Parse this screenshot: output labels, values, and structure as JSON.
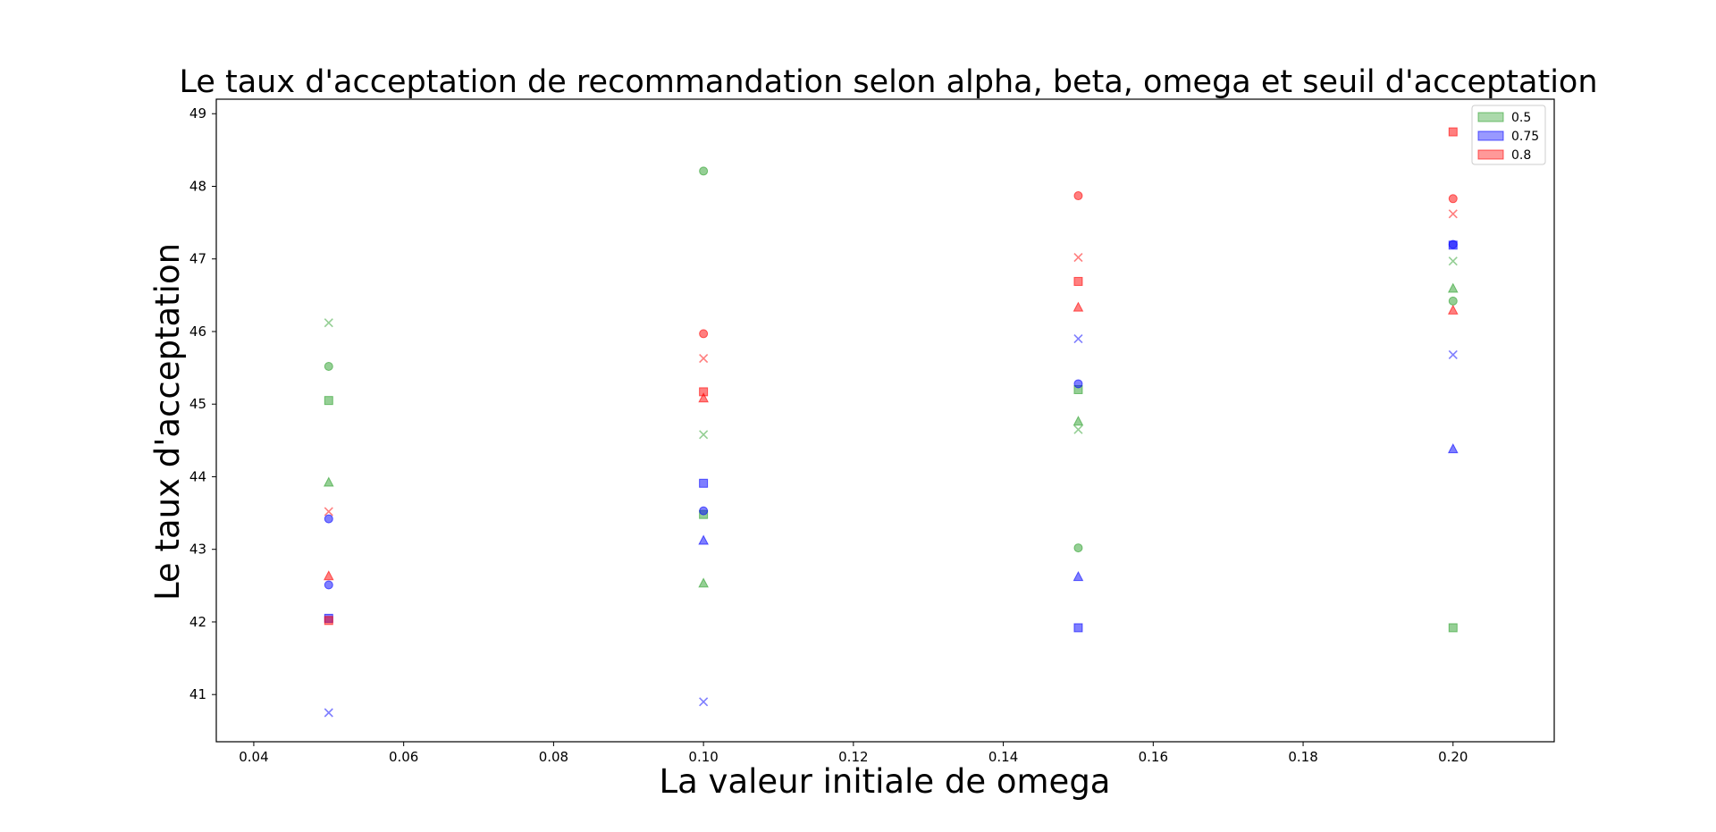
{
  "chart_data": {
    "type": "scatter",
    "title": "Le taux d'acceptation de recommandation selon alpha, beta, omega et seuil d'acceptation",
    "xlabel": "La valeur initiale de omega",
    "ylabel": "Le taux d'acceptation",
    "xlim": [
      0.035,
      0.2135
    ],
    "ylim": [
      40.35,
      49.2
    ],
    "xticks": [
      "0.04",
      "0.06",
      "0.08",
      "0.10",
      "0.12",
      "0.14",
      "0.16",
      "0.18",
      "0.20"
    ],
    "yticks": [
      "41",
      "42",
      "43",
      "44",
      "45",
      "46",
      "47",
      "48",
      "49"
    ],
    "grid": false,
    "legend_position": "top-right",
    "series": [
      {
        "name": "0.5",
        "color": "#2ca02c",
        "points": [
          {
            "x": 0.05,
            "y": 46.12,
            "marker": "x"
          },
          {
            "x": 0.05,
            "y": 45.52,
            "marker": "circle"
          },
          {
            "x": 0.05,
            "y": 45.05,
            "marker": "square"
          },
          {
            "x": 0.05,
            "y": 43.92,
            "marker": "triangle"
          },
          {
            "x": 0.1,
            "y": 48.21,
            "marker": "circle"
          },
          {
            "x": 0.1,
            "y": 44.58,
            "marker": "x"
          },
          {
            "x": 0.1,
            "y": 43.48,
            "marker": "square"
          },
          {
            "x": 0.1,
            "y": 42.53,
            "marker": "triangle"
          },
          {
            "x": 0.15,
            "y": 45.2,
            "marker": "square"
          },
          {
            "x": 0.15,
            "y": 44.76,
            "marker": "triangle"
          },
          {
            "x": 0.15,
            "y": 44.65,
            "marker": "x"
          },
          {
            "x": 0.15,
            "y": 43.02,
            "marker": "circle"
          },
          {
            "x": 0.2,
            "y": 46.97,
            "marker": "x"
          },
          {
            "x": 0.2,
            "y": 46.59,
            "marker": "triangle"
          },
          {
            "x": 0.2,
            "y": 46.42,
            "marker": "circle"
          },
          {
            "x": 0.2,
            "y": 41.92,
            "marker": "square"
          }
        ]
      },
      {
        "name": "0.75",
        "color": "#0000ff",
        "points": [
          {
            "x": 0.05,
            "y": 43.42,
            "marker": "circle"
          },
          {
            "x": 0.05,
            "y": 42.51,
            "marker": "circle"
          },
          {
            "x": 0.05,
            "y": 42.05,
            "marker": "square"
          },
          {
            "x": 0.05,
            "y": 40.75,
            "marker": "x"
          },
          {
            "x": 0.1,
            "y": 43.91,
            "marker": "square"
          },
          {
            "x": 0.1,
            "y": 43.53,
            "marker": "circle"
          },
          {
            "x": 0.1,
            "y": 43.12,
            "marker": "triangle"
          },
          {
            "x": 0.1,
            "y": 40.9,
            "marker": "x"
          },
          {
            "x": 0.15,
            "y": 45.9,
            "marker": "x"
          },
          {
            "x": 0.15,
            "y": 45.28,
            "marker": "circle"
          },
          {
            "x": 0.15,
            "y": 42.62,
            "marker": "triangle"
          },
          {
            "x": 0.15,
            "y": 41.92,
            "marker": "square"
          },
          {
            "x": 0.2,
            "y": 47.2,
            "marker": "circle"
          },
          {
            "x": 0.2,
            "y": 47.19,
            "marker": "square"
          },
          {
            "x": 0.2,
            "y": 45.68,
            "marker": "x"
          },
          {
            "x": 0.2,
            "y": 44.38,
            "marker": "triangle"
          }
        ]
      },
      {
        "name": "0.8",
        "color": "#ff0000",
        "points": [
          {
            "x": 0.05,
            "y": 43.52,
            "marker": "x"
          },
          {
            "x": 0.05,
            "y": 42.63,
            "marker": "triangle"
          },
          {
            "x": 0.05,
            "y": 42.02,
            "marker": "square"
          },
          {
            "x": 0.1,
            "y": 45.97,
            "marker": "circle"
          },
          {
            "x": 0.1,
            "y": 45.63,
            "marker": "x"
          },
          {
            "x": 0.1,
            "y": 45.17,
            "marker": "square"
          },
          {
            "x": 0.1,
            "y": 45.08,
            "marker": "triangle"
          },
          {
            "x": 0.15,
            "y": 47.87,
            "marker": "circle"
          },
          {
            "x": 0.15,
            "y": 47.02,
            "marker": "x"
          },
          {
            "x": 0.15,
            "y": 46.69,
            "marker": "square"
          },
          {
            "x": 0.15,
            "y": 46.33,
            "marker": "triangle"
          },
          {
            "x": 0.2,
            "y": 48.75,
            "marker": "square"
          },
          {
            "x": 0.2,
            "y": 47.83,
            "marker": "circle"
          },
          {
            "x": 0.2,
            "y": 47.62,
            "marker": "x"
          },
          {
            "x": 0.2,
            "y": 46.29,
            "marker": "triangle"
          }
        ]
      }
    ]
  }
}
